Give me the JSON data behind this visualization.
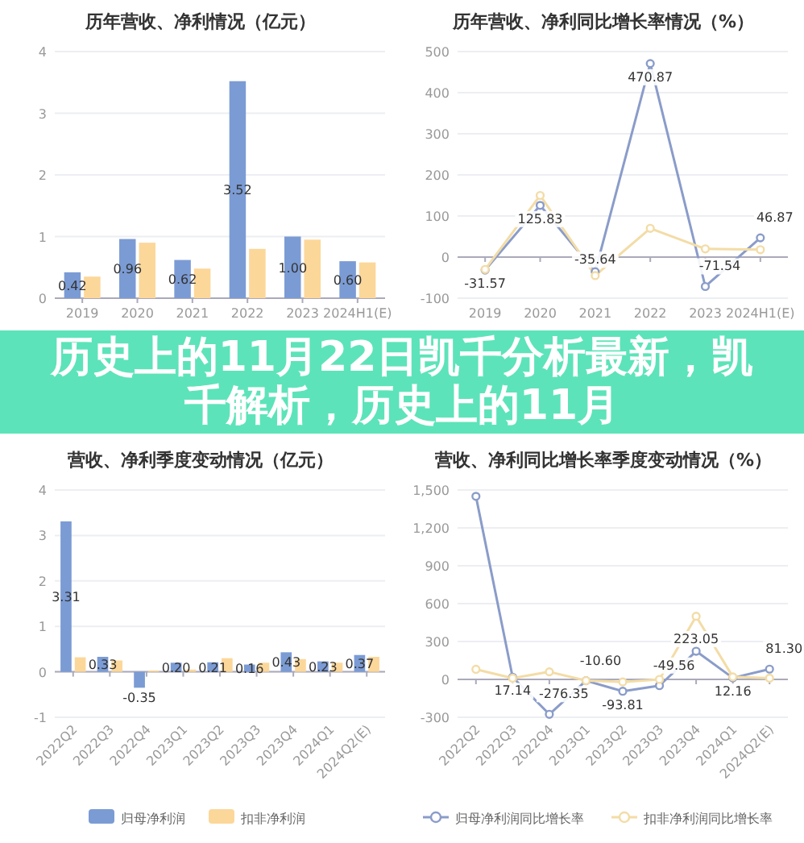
{
  "chart_data": [
    {
      "type": "bar",
      "title": "历年营收、净利情况（亿元）",
      "categories": [
        "2019",
        "2020",
        "2021",
        "2022",
        "2023",
        "2024H1(E)"
      ],
      "ylim": [
        0,
        4
      ],
      "yticks": [
        0,
        1,
        2,
        3,
        4
      ],
      "grid": "y",
      "series": [
        {
          "color": "#7b9bd4",
          "values": [
            0.42,
            0.96,
            0.62,
            3.52,
            1.0,
            0.6
          ],
          "value_labels": [
            "0.42",
            "0.96",
            "0.62",
            "3.52",
            "1.00",
            "0.60"
          ]
        },
        {
          "color": "#fcd79a",
          "values": [
            0.35,
            0.9,
            0.48,
            0.8,
            0.95,
            0.58
          ]
        }
      ]
    },
    {
      "type": "line",
      "title": "历年营收、净利同比增长率情况（%）",
      "categories": [
        "2019",
        "2020",
        "2021",
        "2022",
        "2023",
        "2024H1(E)"
      ],
      "ylim": [
        -100,
        500
      ],
      "yticks": [
        -100,
        0,
        100,
        200,
        300,
        400,
        500
      ],
      "grid": "y",
      "marker": "circle",
      "series": [
        {
          "color": "#8a9cc9",
          "values": [
            -31.57,
            125.83,
            -35.64,
            470.87,
            -71.54,
            46.87
          ],
          "value_labels": [
            "-31.57",
            "125.83",
            "-35.64",
            "470.87",
            "-71.54",
            "46.87"
          ]
        },
        {
          "color": "#f3dca6",
          "values": [
            -30,
            150,
            -45,
            70,
            20,
            18
          ]
        }
      ]
    },
    {
      "type": "other",
      "title": "历史上的11月22日凯千分析最新，凯千解析，历史上的11月"
    },
    {
      "type": "bar",
      "title": "营收、净利季度变动情况（亿元）",
      "categories": [
        "2022Q2",
        "2022Q3",
        "2022Q4",
        "2023Q1",
        "2023Q2",
        "2023Q3",
        "2023Q4",
        "2024Q1",
        "2024Q2(E)"
      ],
      "ylim": [
        -1,
        4
      ],
      "yticks": [
        -1,
        0,
        1,
        2,
        3,
        4
      ],
      "grid": "y",
      "legend": "bottom",
      "series": [
        {
          "name": "归母净利润",
          "color": "#7b9bd4",
          "values": [
            3.31,
            0.33,
            -0.35,
            0.2,
            0.21,
            0.16,
            0.43,
            0.23,
            0.37
          ],
          "value_labels": [
            "3.31",
            "0.33",
            "-0.35",
            "0.20",
            "0.21",
            "0.16",
            "0.43",
            "0.23",
            "0.37"
          ]
        },
        {
          "name": "扣非净利润",
          "color": "#fcd79a",
          "values": [
            0.32,
            0.25,
            0.03,
            0.05,
            0.3,
            0.2,
            0.28,
            0.2,
            0.33
          ]
        }
      ]
    },
    {
      "type": "line",
      "title": "营收、净利同比增长率季度变动情况（%）",
      "categories": [
        "2022Q2",
        "2022Q3",
        "2022Q4",
        "2023Q1",
        "2023Q2",
        "2023Q3",
        "2023Q4",
        "2024Q1",
        "2024Q2(E)"
      ],
      "ylim": [
        -300,
        1500
      ],
      "yticks": [
        -300,
        0,
        300,
        600,
        900,
        {
          "value": 1200,
          "label": "1,200"
        },
        {
          "value": 1500,
          "label": "1,500"
        }
      ],
      "grid": "y",
      "marker": "circle",
      "legend": "bottom",
      "series": [
        {
          "name": "归母净利润同比增长率",
          "color": "#8a9cc9",
          "values": [
            1450,
            17.14,
            -276.35,
            -10.6,
            -93.81,
            -49.56,
            223.05,
            12.16,
            81.3
          ],
          "value_labels": [
            null,
            "17.14",
            "-276.35",
            "-10.60",
            "-93.81",
            "-49.56",
            "223.05",
            "12.16",
            "81.30"
          ]
        },
        {
          "name": "扣非净利润同比增长率",
          "color": "#f3dca6",
          "values": [
            80,
            10,
            60,
            -10,
            -20,
            0,
            500,
            20,
            10
          ]
        }
      ]
    }
  ]
}
